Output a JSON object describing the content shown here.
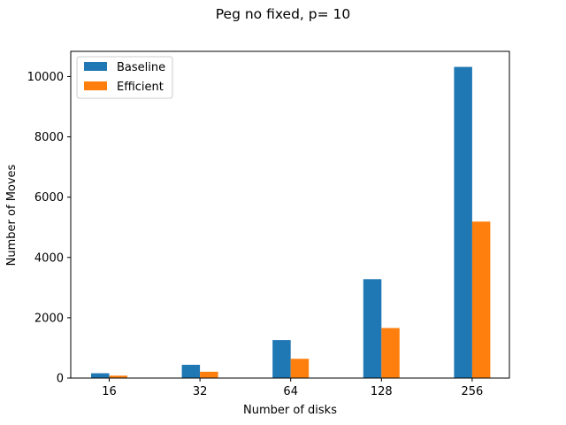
{
  "chart_data": {
    "type": "bar",
    "title": "Peg no fixed, p= 10",
    "xlabel": "Number of disks",
    "ylabel": "Number of Moves",
    "categories": [
      "16",
      "32",
      "64",
      "128",
      "256"
    ],
    "series": [
      {
        "name": "Baseline",
        "color": "#1f77b4",
        "values": [
          160,
          440,
          1260,
          3280,
          10320
        ]
      },
      {
        "name": "Efficient",
        "color": "#ff7f0e",
        "values": [
          80,
          210,
          640,
          1660,
          5190
        ]
      }
    ],
    "ylim": [
      0,
      10836
    ],
    "yticks": [
      0,
      2000,
      4000,
      6000,
      8000,
      10000
    ],
    "grid": false,
    "legend_position": "upper-left"
  }
}
